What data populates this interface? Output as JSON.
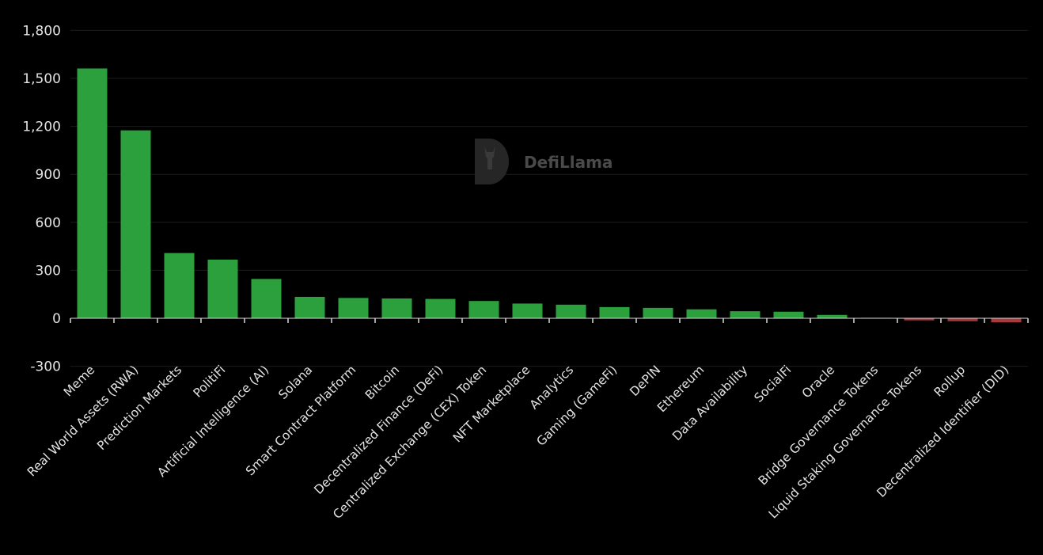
{
  "watermark": {
    "text": "DefiLlama"
  },
  "colors": {
    "positive": "#2ca03c",
    "negative": "#a83a3e",
    "background": "#000000",
    "grid": "#1c1c1c",
    "text": "#e2e2e2"
  },
  "chart_data": {
    "type": "bar",
    "title": "",
    "xlabel": "",
    "ylabel": "",
    "ylim": [
      -300,
      1800
    ],
    "yticks": [
      -300,
      0,
      300,
      600,
      900,
      1200,
      1500,
      1800
    ],
    "ytick_labels": [
      "-300",
      "0",
      "300",
      "600",
      "900",
      "1,200",
      "1,500",
      "1,800"
    ],
    "grid": true,
    "legend": null,
    "categories": [
      "Meme",
      "Real World Assets (RWA)",
      "Prediction Markets",
      "PolitiFi",
      "Artificial Intelligence (AI)",
      "Solana",
      "Smart Contract Platform",
      "Bitcoin",
      "Decentralized Finance (DeFi)",
      "Centralized Exchange (CEX) Token",
      "NFT Marketplace",
      "Analytics",
      "Gaming (GameFi)",
      "DePIN",
      "Ethereum",
      "Data Availability",
      "SocialFi",
      "Oracle",
      "Bridge Governance Tokens",
      "Liquid Staking Governance Tokens",
      "Rollup",
      "Decentralized Identifier (DID)"
    ],
    "values": [
      1562,
      1175,
      408,
      367,
      246,
      134,
      127,
      124,
      121,
      108,
      92,
      85,
      70,
      65,
      56,
      44,
      41,
      21,
      3,
      -13,
      -18,
      -25
    ]
  }
}
